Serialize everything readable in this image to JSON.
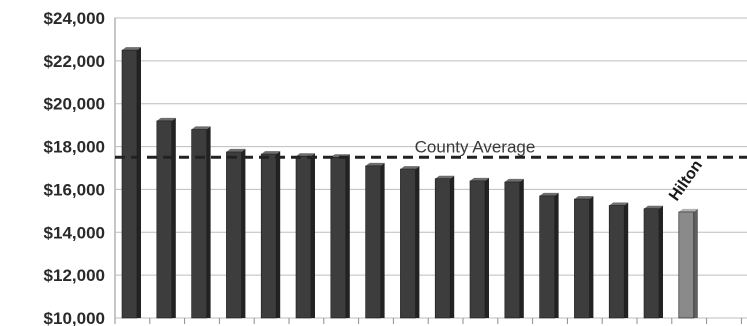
{
  "chart_data": {
    "type": "bar",
    "title": "",
    "xlabel": "",
    "ylabel": "",
    "ylim": [
      10000,
      24000
    ],
    "y_ticks": [
      10000,
      12000,
      14000,
      16000,
      18000,
      20000,
      22000,
      24000
    ],
    "y_tick_labels": [
      "$10,000",
      "$12,000",
      "$14,000",
      "$16,000",
      "$18,000",
      "$20,000",
      "$22,000",
      "$24,000"
    ],
    "grid": true,
    "values": [
      22500,
      19200,
      18800,
      17750,
      17650,
      17550,
      17500,
      17100,
      16950,
      16500,
      16400,
      16350,
      15700,
      15550,
      15250,
      15100,
      14950
    ],
    "highlight_index": 16,
    "highlight_label": "Hilton",
    "reference_line": {
      "label": "County Average",
      "value": 17500
    },
    "colors": {
      "bar": "#3d3d3d",
      "highlight": "#8a8a8a",
      "line": "#222222",
      "grid": "#bdbdbd"
    }
  }
}
